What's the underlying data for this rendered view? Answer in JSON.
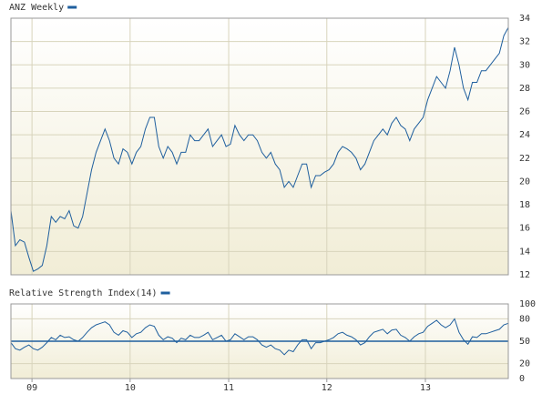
{
  "chart_data": [
    {
      "type": "line",
      "title": "ANZ Weekly",
      "color": "#1f5f9e",
      "series": [
        {
          "name": "ANZ Weekly",
          "color": "#1f5f9e",
          "values": [
            17.5,
            14.5,
            15,
            14.8,
            13.5,
            12.3,
            12.5,
            12.8,
            14.5,
            17,
            16.5,
            17,
            16.8,
            17.5,
            16.2,
            16,
            17,
            19,
            21,
            22.5,
            23.5,
            24.5,
            23.5,
            22,
            21.5,
            22.8,
            22.5,
            21.5,
            22.5,
            23,
            24.5,
            25.5,
            25.5,
            23,
            22,
            23,
            22.5,
            21.5,
            22.5,
            22.5,
            24,
            23.5,
            23.5,
            24,
            24.5,
            23,
            23.5,
            24,
            23,
            23.2,
            24.8,
            24,
            23.5,
            24,
            24,
            23.5,
            22.5,
            22,
            22.5,
            21.5,
            21,
            19.5,
            20,
            19.5,
            20.5,
            21.5,
            21.5,
            19.5,
            20.5,
            20.5,
            20.8,
            21,
            21.5,
            22.5,
            23,
            22.8,
            22.5,
            22,
            21,
            21.5,
            22.5,
            23.5,
            24,
            24.5,
            24,
            25,
            25.5,
            24.8,
            24.5,
            23.5,
            24.5,
            25,
            25.5,
            27,
            28,
            29,
            28.5,
            28,
            29.5,
            31.5,
            30,
            28,
            27,
            28.5,
            28.5,
            29.5,
            29.5,
            30,
            30.5,
            31,
            32.5,
            33.2
          ]
        }
      ],
      "xlim": [
        0,
        111
      ],
      "ylim": [
        12,
        34
      ],
      "yticks": [
        12,
        14,
        16,
        18,
        20,
        22,
        24,
        26,
        28,
        30,
        32,
        34
      ],
      "grid": true
    },
    {
      "type": "line",
      "title": "Relative Strength Index(14)",
      "color": "#1f5f9e",
      "series": [
        {
          "name": "Relative Strength Index(14)",
          "color": "#1f5f9e",
          "values": [
            48,
            40,
            38,
            42,
            45,
            40,
            38,
            42,
            48,
            55,
            52,
            58,
            55,
            56,
            52,
            50,
            55,
            62,
            68,
            72,
            74,
            76,
            72,
            62,
            58,
            64,
            62,
            55,
            60,
            62,
            68,
            72,
            70,
            58,
            52,
            56,
            54,
            48,
            54,
            52,
            58,
            55,
            55,
            58,
            62,
            52,
            55,
            58,
            50,
            52,
            60,
            56,
            52,
            56,
            56,
            52,
            45,
            42,
            45,
            40,
            38,
            32,
            38,
            36,
            45,
            52,
            52,
            40,
            48,
            48,
            50,
            52,
            55,
            60,
            62,
            58,
            56,
            52,
            45,
            48,
            56,
            62,
            64,
            66,
            60,
            65,
            66,
            58,
            55,
            50,
            56,
            60,
            62,
            70,
            74,
            78,
            72,
            68,
            72,
            80,
            62,
            52,
            46,
            56,
            55,
            60,
            60,
            62,
            64,
            66,
            72,
            74
          ]
        }
      ],
      "xlim": [
        0,
        111
      ],
      "ylim": [
        0,
        100
      ],
      "yticks": [
        0,
        20,
        50,
        80,
        100
      ],
      "hline": 50,
      "xticks": [
        {
          "value": 4.7,
          "label": "09"
        },
        {
          "value": 26.6,
          "label": "10"
        },
        {
          "value": 48.6,
          "label": "11"
        },
        {
          "value": 70.5,
          "label": "12"
        },
        {
          "value": 92.5,
          "label": "13"
        }
      ],
      "grid": true
    }
  ]
}
